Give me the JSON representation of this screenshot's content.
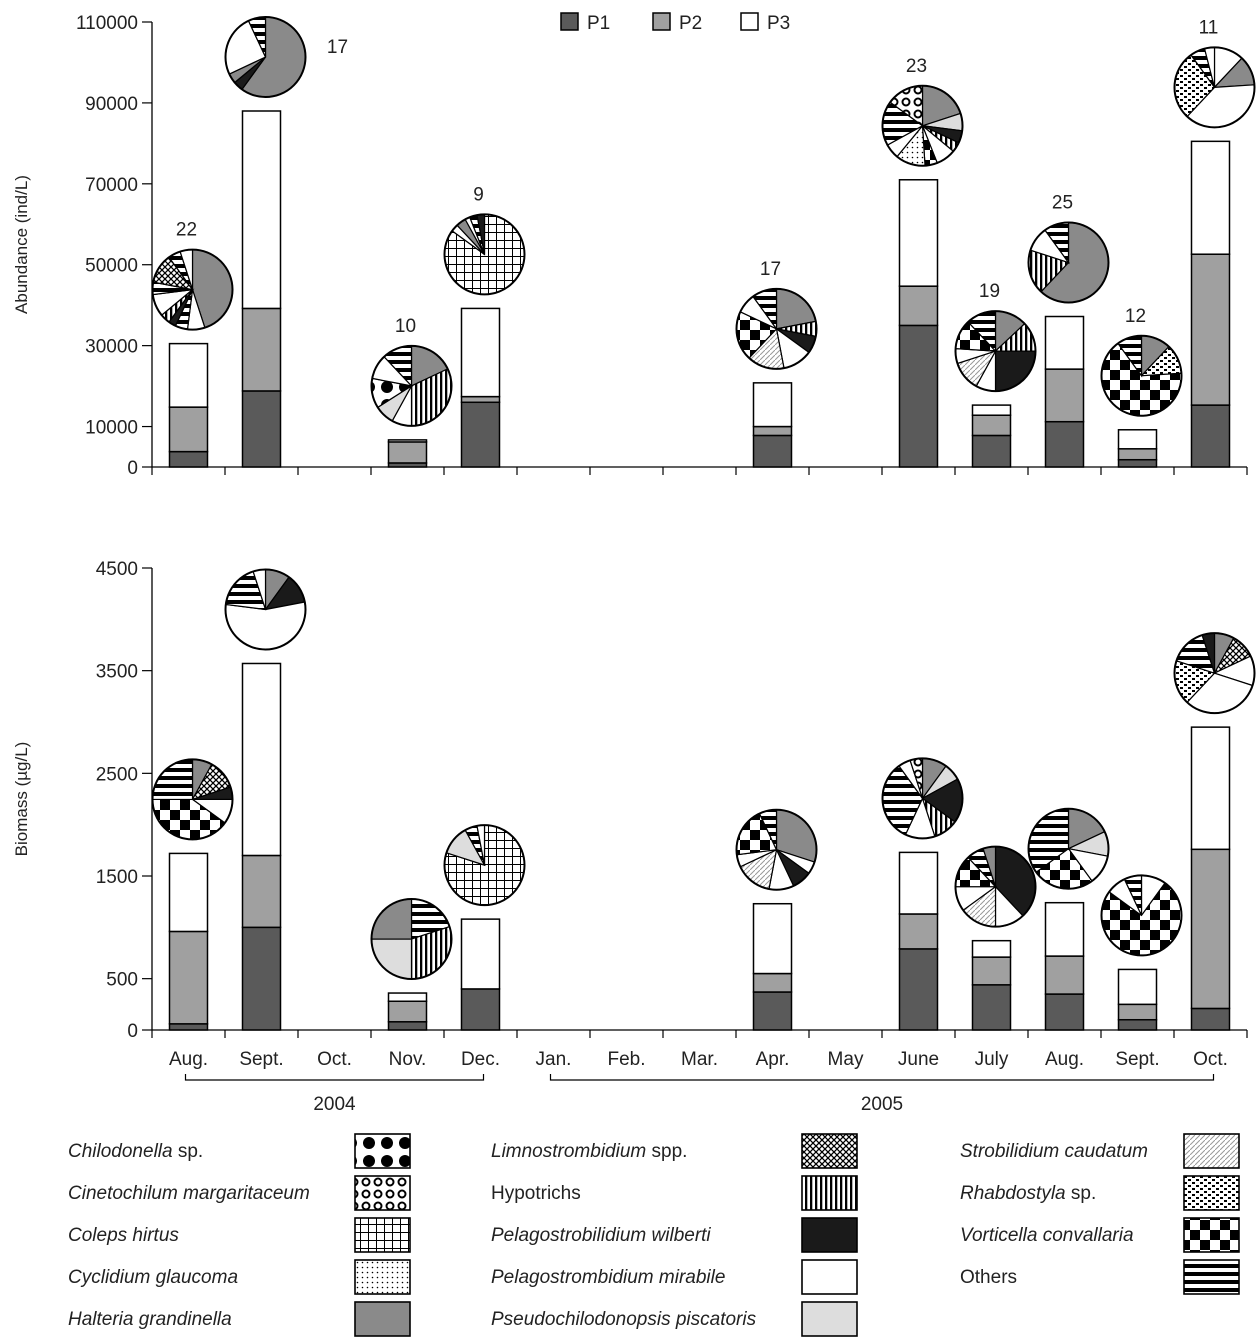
{
  "chart_data": [
    {
      "type": "bar",
      "stacked": true,
      "ylabel": "Abundance (ind/L)",
      "ylim": [
        0,
        110000
      ],
      "yticks": [
        0,
        10000,
        30000,
        50000,
        70000,
        90000,
        110000
      ],
      "categories": [
        "Aug.",
        "Sept.",
        "Oct.",
        "Nov.",
        "Dec.",
        "Jan.",
        "Feb.",
        "Mar.",
        "Apr.",
        "May",
        "June",
        "July",
        "Aug.",
        "Sept.",
        "Oct."
      ],
      "series": [
        {
          "name": "P1",
          "values": [
            3800,
            18800,
            0,
            1000,
            16000,
            0,
            0,
            0,
            7800,
            0,
            35000,
            7800,
            11200,
            1800,
            15300
          ]
        },
        {
          "name": "P2",
          "values": [
            11000,
            20400,
            0,
            5200,
            1400,
            0,
            0,
            0,
            2200,
            0,
            9700,
            5000,
            13000,
            2700,
            37300
          ]
        },
        {
          "name": "P3",
          "values": [
            15700,
            48800,
            0,
            500,
            21800,
            0,
            0,
            0,
            10800,
            0,
            26300,
            2500,
            13000,
            4700,
            27900
          ]
        }
      ],
      "species_counts": [
        "22",
        "17",
        "",
        "10",
        "9",
        "",
        "",
        "",
        "17",
        "",
        "23",
        "19",
        "25",
        "12",
        "11"
      ]
    },
    {
      "type": "bar",
      "stacked": true,
      "ylabel": "Biomass (µg/L)",
      "ylim": [
        0,
        4500
      ],
      "yticks": [
        0,
        500,
        1500,
        2500,
        3500,
        4500
      ],
      "categories": [
        "Aug.",
        "Sept.",
        "Oct.",
        "Nov.",
        "Dec.",
        "Jan.",
        "Feb.",
        "Mar.",
        "Apr.",
        "May",
        "June",
        "July",
        "Aug.",
        "Sept.",
        "Oct."
      ],
      "series": [
        {
          "name": "P1",
          "values": [
            60,
            1000,
            0,
            80,
            400,
            0,
            0,
            0,
            370,
            0,
            790,
            440,
            350,
            100,
            210
          ]
        },
        {
          "name": "P2",
          "values": [
            900,
            700,
            0,
            200,
            0,
            0,
            0,
            0,
            180,
            0,
            340,
            270,
            370,
            150,
            1550
          ]
        },
        {
          "name": "P3",
          "values": [
            760,
            1870,
            0,
            80,
            680,
            0,
            0,
            0,
            680,
            0,
            600,
            160,
            520,
            340,
            1190
          ]
        }
      ]
    }
  ],
  "year_groups": [
    {
      "label": "2004",
      "from": 0,
      "to": 4
    },
    {
      "label": "2005",
      "from": 5,
      "to": 14
    }
  ],
  "series_colors": {
    "P1": "#5a5a5a",
    "P2": "#a0a0a0",
    "P3": "#ffffff"
  },
  "species_legend": [
    {
      "label": "Chilodonella",
      "suffix": " sp.",
      "italic": true,
      "pattern": "dots-large"
    },
    {
      "label": "Cinetochilum margaritaceum",
      "suffix": "",
      "italic": true,
      "pattern": "rings"
    },
    {
      "label": "Coleps hirtus",
      "suffix": "",
      "italic": true,
      "pattern": "grid"
    },
    {
      "label": "Cyclidium glaucoma",
      "suffix": "",
      "italic": true,
      "pattern": "dots-fine"
    },
    {
      "label": "Halteria grandinella",
      "suffix": "",
      "italic": true,
      "pattern": "solid-gray"
    },
    {
      "label": "Limnostrombidium",
      "suffix": " spp.",
      "italic": true,
      "pattern": "crosshatch"
    },
    {
      "label": "Hypotrichs",
      "suffix": "",
      "italic": false,
      "pattern": "vertical"
    },
    {
      "label": "Pelagostrobilidium wilberti",
      "suffix": "",
      "italic": true,
      "pattern": "solid-black"
    },
    {
      "label": "Pelagostrombidium mirabile",
      "suffix": "",
      "italic": true,
      "pattern": "white"
    },
    {
      "label": "Pseudochilodonopsis piscatoris",
      "suffix": "",
      "italic": true,
      "pattern": "light-gray"
    },
    {
      "label": "Strobilidium caudatum",
      "suffix": "",
      "italic": true,
      "pattern": "diagonal-light"
    },
    {
      "label": "Rhabdostyla",
      "suffix": " sp.",
      "italic": true,
      "pattern": "bricks"
    },
    {
      "label": "Vorticella convallaria",
      "suffix": "",
      "italic": true,
      "pattern": "checker"
    },
    {
      "label": "Others",
      "suffix": "",
      "italic": false,
      "pattern": "horizontal"
    }
  ],
  "pies_abundance": [
    {
      "month": 0,
      "slices": [
        [
          "solid-gray",
          0.45
        ],
        [
          "white",
          0.07
        ],
        [
          "horizontal",
          0.05
        ],
        [
          "solid-black",
          0.03
        ],
        [
          "vertical",
          0.04
        ],
        [
          "white",
          0.09
        ],
        [
          "horizontal",
          0.05
        ],
        [
          "crosshatch",
          0.12
        ],
        [
          "horizontal",
          0.05
        ],
        [
          "white",
          0.05
        ]
      ]
    },
    {
      "month": 1,
      "slices": [
        [
          "solid-gray",
          0.6
        ],
        [
          "solid-black",
          0.04
        ],
        [
          "solid-gray",
          0.04
        ],
        [
          "white",
          0.25
        ],
        [
          "horizontal",
          0.07
        ]
      ]
    },
    {
      "month": 3,
      "slices": [
        [
          "solid-gray",
          0.18
        ],
        [
          "vertical",
          0.32
        ],
        [
          "white",
          0.08
        ],
        [
          "light-gray",
          0.08
        ],
        [
          "dots-large",
          0.12
        ],
        [
          "white",
          0.1
        ],
        [
          "horizontal",
          0.12
        ]
      ]
    },
    {
      "month": 4,
      "slices": [
        [
          "grid",
          0.85
        ],
        [
          "white",
          0.03
        ],
        [
          "solid-gray",
          0.04
        ],
        [
          "white",
          0.02
        ],
        [
          "horizontal",
          0.03
        ],
        [
          "solid-black",
          0.03
        ]
      ]
    },
    {
      "month": 8,
      "slices": [
        [
          "solid-gray",
          0.22
        ],
        [
          "vertical",
          0.06
        ],
        [
          "solid-black",
          0.07
        ],
        [
          "white",
          0.12
        ],
        [
          "diagonal-light",
          0.15
        ],
        [
          "checker",
          0.2
        ],
        [
          "white",
          0.08
        ],
        [
          "horizontal",
          0.1
        ]
      ]
    },
    {
      "month": 10,
      "slices": [
        [
          "solid-gray",
          0.2
        ],
        [
          "light-gray",
          0.07
        ],
        [
          "solid-black",
          0.05
        ],
        [
          "vertical",
          0.04
        ],
        [
          "white",
          0.08
        ],
        [
          "checker",
          0.05
        ],
        [
          "dots-fine",
          0.12
        ],
        [
          "white",
          0.06
        ],
        [
          "horizontal",
          0.18
        ],
        [
          "rings",
          0.15
        ]
      ]
    },
    {
      "month": 11,
      "slices": [
        [
          "solid-gray",
          0.13
        ],
        [
          "vertical",
          0.12
        ],
        [
          "solid-black",
          0.25
        ],
        [
          "white",
          0.08
        ],
        [
          "diagonal-light",
          0.12
        ],
        [
          "white",
          0.06
        ],
        [
          "checker",
          0.12
        ],
        [
          "horizontal",
          0.12
        ]
      ]
    },
    {
      "month": 12,
      "slices": [
        [
          "solid-gray",
          0.62
        ],
        [
          "vertical",
          0.18
        ],
        [
          "white",
          0.1
        ],
        [
          "horizontal",
          0.1
        ]
      ]
    },
    {
      "month": 13,
      "slices": [
        [
          "solid-gray",
          0.12
        ],
        [
          "bricks",
          0.12
        ],
        [
          "checker",
          0.66
        ],
        [
          "horizontal",
          0.1
        ]
      ]
    },
    {
      "month": 14,
      "slices": [
        [
          "white",
          0.12
        ],
        [
          "solid-gray",
          0.12
        ],
        [
          "white",
          0.38
        ],
        [
          "bricks",
          0.28
        ],
        [
          "horizontal",
          0.06
        ],
        [
          "white",
          0.04
        ]
      ]
    }
  ],
  "pies_biomass": [
    {
      "month": 0,
      "slices": [
        [
          "solid-gray",
          0.08
        ],
        [
          "crosshatch",
          0.12
        ],
        [
          "solid-black",
          0.05
        ],
        [
          "white",
          0.1
        ],
        [
          "checker",
          0.4
        ],
        [
          "horizontal",
          0.25
        ]
      ]
    },
    {
      "month": 1,
      "slices": [
        [
          "solid-gray",
          0.1
        ],
        [
          "solid-black",
          0.12
        ],
        [
          "white",
          0.55
        ],
        [
          "horizontal",
          0.18
        ],
        [
          "white",
          0.05
        ]
      ]
    },
    {
      "month": 3,
      "slices": [
        [
          "horizontal",
          0.2
        ],
        [
          "vertical",
          0.3
        ],
        [
          "light-gray",
          0.25
        ],
        [
          "solid-gray",
          0.25
        ]
      ]
    },
    {
      "month": 4,
      "slices": [
        [
          "grid",
          0.8
        ],
        [
          "light-gray",
          0.12
        ],
        [
          "horizontal",
          0.05
        ],
        [
          "white",
          0.03
        ]
      ]
    },
    {
      "month": 8,
      "slices": [
        [
          "solid-gray",
          0.3
        ],
        [
          "white",
          0.05
        ],
        [
          "solid-black",
          0.08
        ],
        [
          "white",
          0.1
        ],
        [
          "diagonal-light",
          0.15
        ],
        [
          "white",
          0.05
        ],
        [
          "checker",
          0.2
        ],
        [
          "horizontal",
          0.07
        ]
      ]
    },
    {
      "month": 10,
      "slices": [
        [
          "solid-gray",
          0.1
        ],
        [
          "light-gray",
          0.07
        ],
        [
          "solid-black",
          0.18
        ],
        [
          "vertical",
          0.1
        ],
        [
          "white",
          0.12
        ],
        [
          "horizontal",
          0.33
        ],
        [
          "white",
          0.05
        ],
        [
          "rings",
          0.05
        ]
      ]
    },
    {
      "month": 11,
      "slices": [
        [
          "solid-black",
          0.38
        ],
        [
          "white",
          0.12
        ],
        [
          "diagonal-light",
          0.15
        ],
        [
          "white",
          0.1
        ],
        [
          "checker",
          0.13
        ],
        [
          "horizontal",
          0.07
        ],
        [
          "solid-gray",
          0.05
        ]
      ]
    },
    {
      "month": 12,
      "slices": [
        [
          "solid-gray",
          0.18
        ],
        [
          "light-gray",
          0.1
        ],
        [
          "white",
          0.12
        ],
        [
          "checker",
          0.25
        ],
        [
          "horizontal",
          0.35
        ]
      ]
    },
    {
      "month": 13,
      "slices": [
        [
          "white",
          0.1
        ],
        [
          "checker",
          0.75
        ],
        [
          "white",
          0.08
        ],
        [
          "horizontal",
          0.07
        ]
      ]
    },
    {
      "month": 14,
      "slices": [
        [
          "solid-gray",
          0.08
        ],
        [
          "crosshatch",
          0.1
        ],
        [
          "white",
          0.12
        ],
        [
          "white",
          0.32
        ],
        [
          "bricks",
          0.18
        ],
        [
          "horizontal",
          0.15
        ],
        [
          "solid-black",
          0.05
        ]
      ]
    }
  ]
}
